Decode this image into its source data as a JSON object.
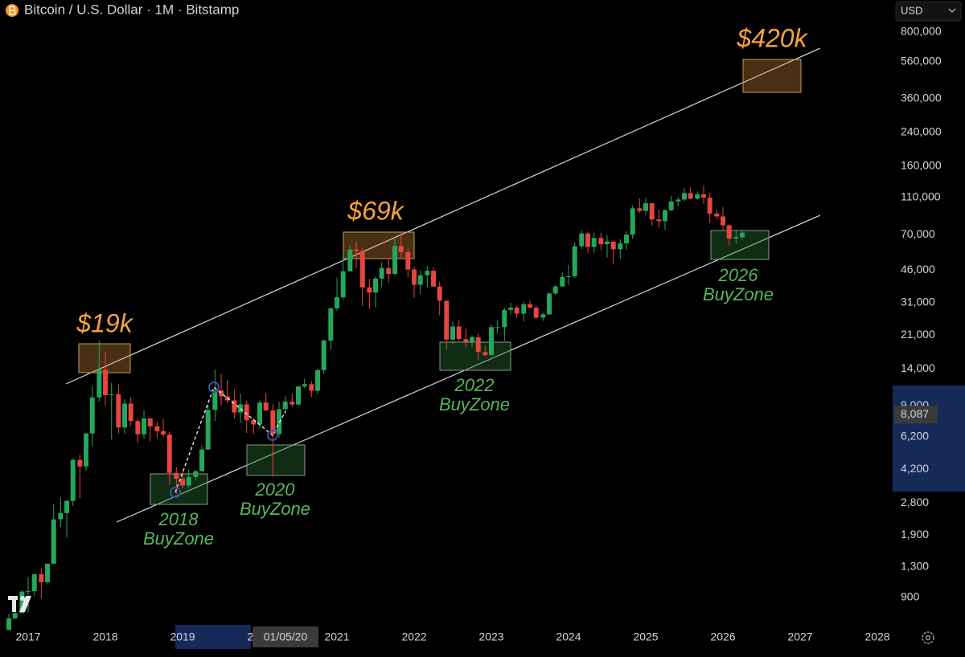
{
  "header": {
    "title": "Bitcoin / U.S. Dollar · 1M · Bitstamp",
    "currency": "USD"
  },
  "chart_data": {
    "type": "candlestick",
    "log_scale": true,
    "up_color": "#26a65b",
    "down_color": "#e5463f",
    "x": [
      2016.75,
      2016.83,
      2016.92,
      2017.0,
      2017.08,
      2017.17,
      2017.25,
      2017.33,
      2017.42,
      2017.5,
      2017.58,
      2017.67,
      2017.75,
      2017.83,
      2017.92,
      2018.0,
      2018.08,
      2018.17,
      2018.25,
      2018.33,
      2018.42,
      2018.5,
      2018.58,
      2018.67,
      2018.75,
      2018.83,
      2018.92,
      2019.0,
      2019.08,
      2019.17,
      2019.25,
      2019.33,
      2019.42,
      2019.5,
      2019.58,
      2019.67,
      2019.75,
      2019.83,
      2019.92,
      2020.0,
      2020.08,
      2020.17,
      2020.25,
      2020.33,
      2020.42,
      2020.5,
      2020.58,
      2020.67,
      2020.75,
      2020.83,
      2020.92,
      2021.0,
      2021.08,
      2021.17,
      2021.25,
      2021.33,
      2021.42,
      2021.5,
      2021.58,
      2021.67,
      2021.75,
      2021.83,
      2021.92,
      2022.0,
      2022.08,
      2022.17,
      2022.25,
      2022.33,
      2022.42,
      2022.5,
      2022.58,
      2022.67,
      2022.75,
      2022.83,
      2022.92,
      2023.0,
      2023.08,
      2023.17,
      2023.25,
      2023.33,
      2023.42,
      2023.5,
      2023.58,
      2023.67,
      2023.75,
      2023.83,
      2023.92,
      2024.0,
      2024.08,
      2024.17,
      2024.25,
      2024.33,
      2024.42,
      2024.5,
      2024.58,
      2024.67,
      2024.75,
      2024.83,
      2024.92,
      2025.0,
      2025.08,
      2025.17,
      2025.25,
      2025.33,
      2025.42,
      2025.5,
      2025.58,
      2025.67,
      2025.75,
      2025.83,
      2025.92,
      2026.0,
      2026.08,
      2026.17,
      2026.25
    ],
    "open": [
      610,
      700,
      745,
      965,
      970,
      1190,
      1080,
      1350,
      2300,
      2480,
      2870,
      4700,
      4340,
      6450,
      9950,
      13850,
      10220,
      10330,
      6930,
      9240,
      7490,
      6390,
      7730,
      7030,
      6630,
      6370,
      4020,
      3740,
      3450,
      3820,
      4100,
      5320,
      8560,
      10820,
      10080,
      9600,
      8300,
      9150,
      7560,
      7190,
      9350,
      8520,
      6410,
      8630,
      9450,
      9140,
      11350,
      11660,
      10780,
      13800,
      19700,
      28990,
      33110,
      45240,
      58800,
      57700,
      37300,
      35040,
      41460,
      47100,
      43820,
      61300,
      57000,
      46200,
      38480,
      43160,
      45540,
      37640,
      31790,
      19930,
      23300,
      20050,
      19420,
      20490,
      17160,
      16540,
      23130,
      23140,
      28470,
      29250,
      27220,
      30470,
      29230,
      25940,
      26970,
      34650,
      37720,
      42270,
      42580,
      61170,
      71290,
      60640,
      67490,
      62680,
      64630,
      58970,
      63330,
      70290,
      96410,
      93430,
      102400,
      84350,
      82550,
      94200,
      104600,
      107100,
      115750,
      108250,
      114050,
      109600,
      90400,
      87500,
      78600,
      67000,
      68200
    ],
    "high": [
      740,
      780,
      980,
      1150,
      1200,
      1280,
      1350,
      2760,
      2990,
      2920,
      4780,
      5000,
      6470,
      11400,
      19700,
      17200,
      11800,
      11700,
      9750,
      10000,
      7750,
      8500,
      7760,
      7400,
      7680,
      6600,
      4300,
      4100,
      4200,
      4150,
      5600,
      9100,
      13900,
      13200,
      12300,
      10950,
      10400,
      9550,
      7750,
      9600,
      10500,
      9200,
      9480,
      10080,
      10400,
      11400,
      12480,
      12100,
      14000,
      19900,
      29300,
      41900,
      58300,
      61800,
      64900,
      59500,
      41300,
      42400,
      50500,
      52900,
      67000,
      69000,
      59000,
      47900,
      45800,
      48200,
      47400,
      40000,
      31900,
      24700,
      25200,
      22800,
      21000,
      21400,
      18400,
      23900,
      25200,
      29100,
      31000,
      29800,
      31400,
      31800,
      30000,
      27500,
      35200,
      38400,
      44700,
      48900,
      64000,
      73800,
      72800,
      71900,
      72000,
      70000,
      65100,
      66500,
      73600,
      99600,
      108300,
      109300,
      102500,
      95000,
      95700,
      111900,
      110400,
      123200,
      124000,
      117900,
      126200,
      116400,
      94600,
      97900,
      79300,
      74000,
      74500
    ],
    "low": [
      605,
      690,
      745,
      750,
      920,
      890,
      1060,
      1350,
      2100,
      1850,
      2700,
      2970,
      4100,
      5540,
      9500,
      9000,
      6000,
      6450,
      6430,
      7030,
      5760,
      6070,
      5880,
      6100,
      6200,
      3480,
      3120,
      3350,
      3380,
      3700,
      4070,
      5320,
      7500,
      9050,
      9300,
      7700,
      7300,
      6500,
      6430,
      6850,
      8450,
      3850,
      6150,
      8100,
      8900,
      9000,
      11150,
      10000,
      10400,
      13200,
      17600,
      28100,
      32300,
      45000,
      47000,
      30000,
      28800,
      29300,
      37300,
      39600,
      43300,
      53300,
      42000,
      33000,
      34300,
      37200,
      37600,
      26700,
      17600,
      18800,
      19600,
      18200,
      18200,
      15500,
      16300,
      16500,
      21400,
      19600,
      26900,
      25900,
      24800,
      28900,
      25400,
      24900,
      26900,
      34100,
      37600,
      38500,
      41800,
      59100,
      56500,
      56600,
      58400,
      53500,
      49000,
      52500,
      58800,
      66800,
      91300,
      89200,
      78200,
      76600,
      74400,
      93300,
      98200,
      105100,
      107300,
      107200,
      102000,
      80600,
      84400,
      74500,
      62000,
      63000,
      66000
    ],
    "close": [
      700,
      745,
      965,
      970,
      1190,
      1080,
      1350,
      2300,
      2480,
      2870,
      4700,
      4340,
      6450,
      9950,
      13850,
      10220,
      10330,
      6930,
      9240,
      7490,
      6390,
      7730,
      7030,
      6630,
      6370,
      4020,
      3740,
      3450,
      3820,
      4100,
      5320,
      8560,
      10820,
      10080,
      9600,
      8300,
      9150,
      7560,
      7190,
      9350,
      8520,
      6410,
      8630,
      9450,
      9140,
      11350,
      11660,
      10780,
      13800,
      19700,
      28990,
      33110,
      45240,
      58800,
      57700,
      37300,
      35040,
      41460,
      47100,
      43820,
      61300,
      57000,
      46200,
      38480,
      43160,
      45540,
      37640,
      31790,
      19930,
      23300,
      20050,
      19420,
      20490,
      17160,
      16540,
      23130,
      23140,
      28470,
      29250,
      27220,
      30470,
      29230,
      25940,
      26970,
      34650,
      37720,
      42270,
      42580,
      61170,
      71290,
      60640,
      67490,
      62680,
      64630,
      58970,
      63330,
      70290,
      96410,
      93430,
      102400,
      84350,
      82550,
      94200,
      104600,
      107100,
      115750,
      108250,
      114050,
      109600,
      90400,
      87500,
      78600,
      67000,
      68200,
      72000
    ],
    "xlim": [
      2016.635,
      2028.198
    ],
    "xticks": [
      2017,
      2018,
      2019,
      2020,
      2021,
      2022,
      2023,
      2024,
      2025,
      2026,
      2027,
      2028
    ],
    "ylim": [
      635,
      1177000
    ],
    "yticks": [
      900,
      {
        "value": 1300,
        "label": "1,300"
      },
      {
        "value": 1900,
        "label": "1,900"
      },
      {
        "value": 2800,
        "label": "2,800"
      },
      {
        "value": 4200,
        "label": "4,200"
      },
      {
        "value": 6200,
        "label": "6,200"
      },
      {
        "value": 9000,
        "label": "9,000"
      },
      {
        "value": 14000,
        "label": "14,000"
      },
      {
        "value": 21000,
        "label": "21,000"
      },
      {
        "value": 31000,
        "label": "31,000"
      },
      {
        "value": 46000,
        "label": "46,000"
      },
      {
        "value": 70000,
        "label": "70,000"
      },
      {
        "value": 110000,
        "label": "110,000"
      },
      {
        "value": 160000,
        "label": "160,000"
      },
      {
        "value": 240000,
        "label": "240,000"
      },
      {
        "value": 360000,
        "label": "360,000"
      },
      {
        "value": 560000,
        "label": "560,000"
      },
      {
        "value": 800000,
        "label": "800,000"
      }
    ],
    "crosshair": {
      "price": {
        "value": 8087,
        "label": "8,087"
      },
      "date_label": "01/05/20"
    },
    "annotations": [
      {
        "text": "$19k"
      },
      {
        "text": "$69k"
      },
      {
        "text": "$420k"
      }
    ],
    "buy_zones": [
      {
        "lines": [
          "2018",
          "BuyZone"
        ]
      },
      {
        "lines": [
          "2020",
          "BuyZone"
        ]
      },
      {
        "lines": [
          "2022",
          "BuyZone"
        ]
      },
      {
        "lines": [
          "2026",
          "BuyZone"
        ]
      }
    ]
  }
}
